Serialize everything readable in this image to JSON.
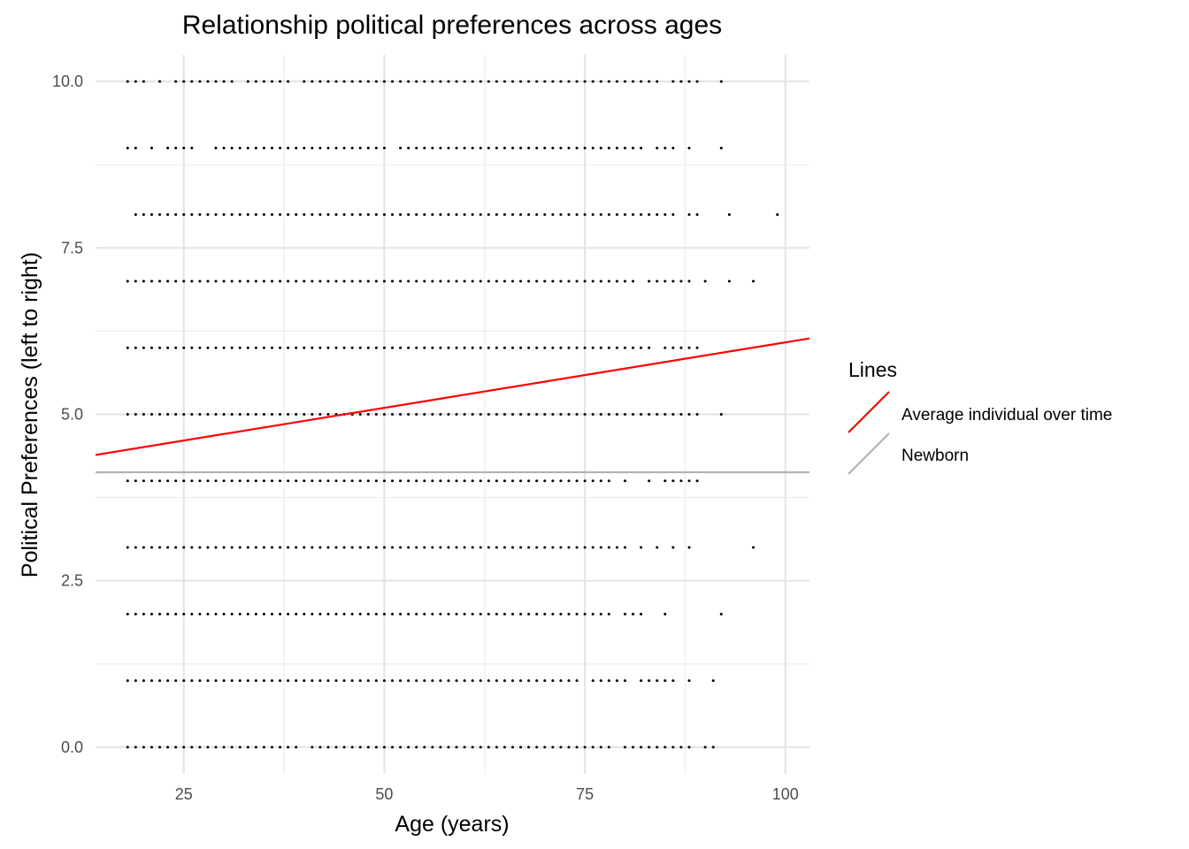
{
  "chart_data": {
    "type": "scatter",
    "title": "Relationship political preferences across ages",
    "xlabel": "Age (years)",
    "ylabel": "Political Preferences (left to right)",
    "xlim": [
      14,
      103
    ],
    "ylim": [
      -0.4,
      10.4
    ],
    "x_ticks": [
      25,
      50,
      75,
      100
    ],
    "x_tick_labels": [
      "25",
      "50",
      "75",
      "100"
    ],
    "x_minor_ticks": [
      37.5,
      62.5,
      87.5
    ],
    "y_ticks": [
      0,
      2.5,
      5,
      7.5,
      10
    ],
    "y_tick_labels": [
      "0.0",
      "2.5",
      "5.0",
      "7.5",
      "10.0"
    ],
    "y_minor_ticks": [
      1.25,
      3.75,
      6.25,
      8.75
    ],
    "grid": true,
    "point_color": "#000000",
    "points_by_preference": [
      {
        "y": 0,
        "ages": [
          [
            18,
            39
          ],
          [
            41,
            78
          ],
          [
            80,
            88
          ],
          [
            90,
            91
          ]
        ]
      },
      {
        "y": 1,
        "ages": [
          [
            18,
            74
          ],
          [
            76,
            80
          ],
          [
            82,
            86
          ],
          [
            88,
            88
          ],
          [
            91,
            91
          ]
        ]
      },
      {
        "y": 2,
        "ages": [
          [
            18,
            78
          ],
          [
            80,
            82
          ],
          [
            85,
            85
          ],
          [
            92,
            92
          ]
        ]
      },
      {
        "y": 3,
        "ages": [
          [
            18,
            80
          ],
          [
            82,
            82
          ],
          [
            84,
            84
          ],
          [
            86,
            86
          ],
          [
            88,
            88
          ],
          [
            96,
            96
          ]
        ]
      },
      {
        "y": 4,
        "ages": [
          [
            18,
            78
          ],
          [
            80,
            80
          ],
          [
            83,
            83
          ],
          [
            85,
            89
          ]
        ]
      },
      {
        "y": 5,
        "ages": [
          [
            18,
            89
          ],
          [
            92,
            92
          ]
        ]
      },
      {
        "y": 6,
        "ages": [
          [
            18,
            83
          ],
          [
            85,
            89
          ]
        ]
      },
      {
        "y": 7,
        "ages": [
          [
            18,
            81
          ],
          [
            83,
            88
          ],
          [
            90,
            90
          ],
          [
            93,
            93
          ],
          [
            96,
            96
          ]
        ]
      },
      {
        "y": 8,
        "ages": [
          [
            19,
            86
          ],
          [
            88,
            89
          ],
          [
            93,
            93
          ],
          [
            99,
            99
          ]
        ]
      },
      {
        "y": 9,
        "ages": [
          [
            18,
            19
          ],
          [
            21,
            21
          ],
          [
            23,
            26
          ],
          [
            29,
            50
          ],
          [
            52,
            82
          ],
          [
            84,
            86
          ],
          [
            88,
            88
          ],
          [
            92,
            92
          ]
        ]
      },
      {
        "y": 10,
        "ages": [
          [
            18,
            20
          ],
          [
            22,
            22
          ],
          [
            24,
            31
          ],
          [
            33,
            38
          ],
          [
            40,
            84
          ],
          [
            86,
            89
          ],
          [
            92,
            92
          ]
        ]
      }
    ],
    "series": [
      {
        "name": "Average individual over time",
        "color": "#ff0000",
        "x": [
          14,
          103
        ],
        "y": [
          4.39,
          6.14
        ]
      },
      {
        "name": "Newborn",
        "color": "#b3b3b3",
        "x": [
          14,
          103
        ],
        "y": [
          4.13,
          4.13
        ]
      }
    ],
    "legend": {
      "title": "Lines",
      "position": "right"
    }
  }
}
